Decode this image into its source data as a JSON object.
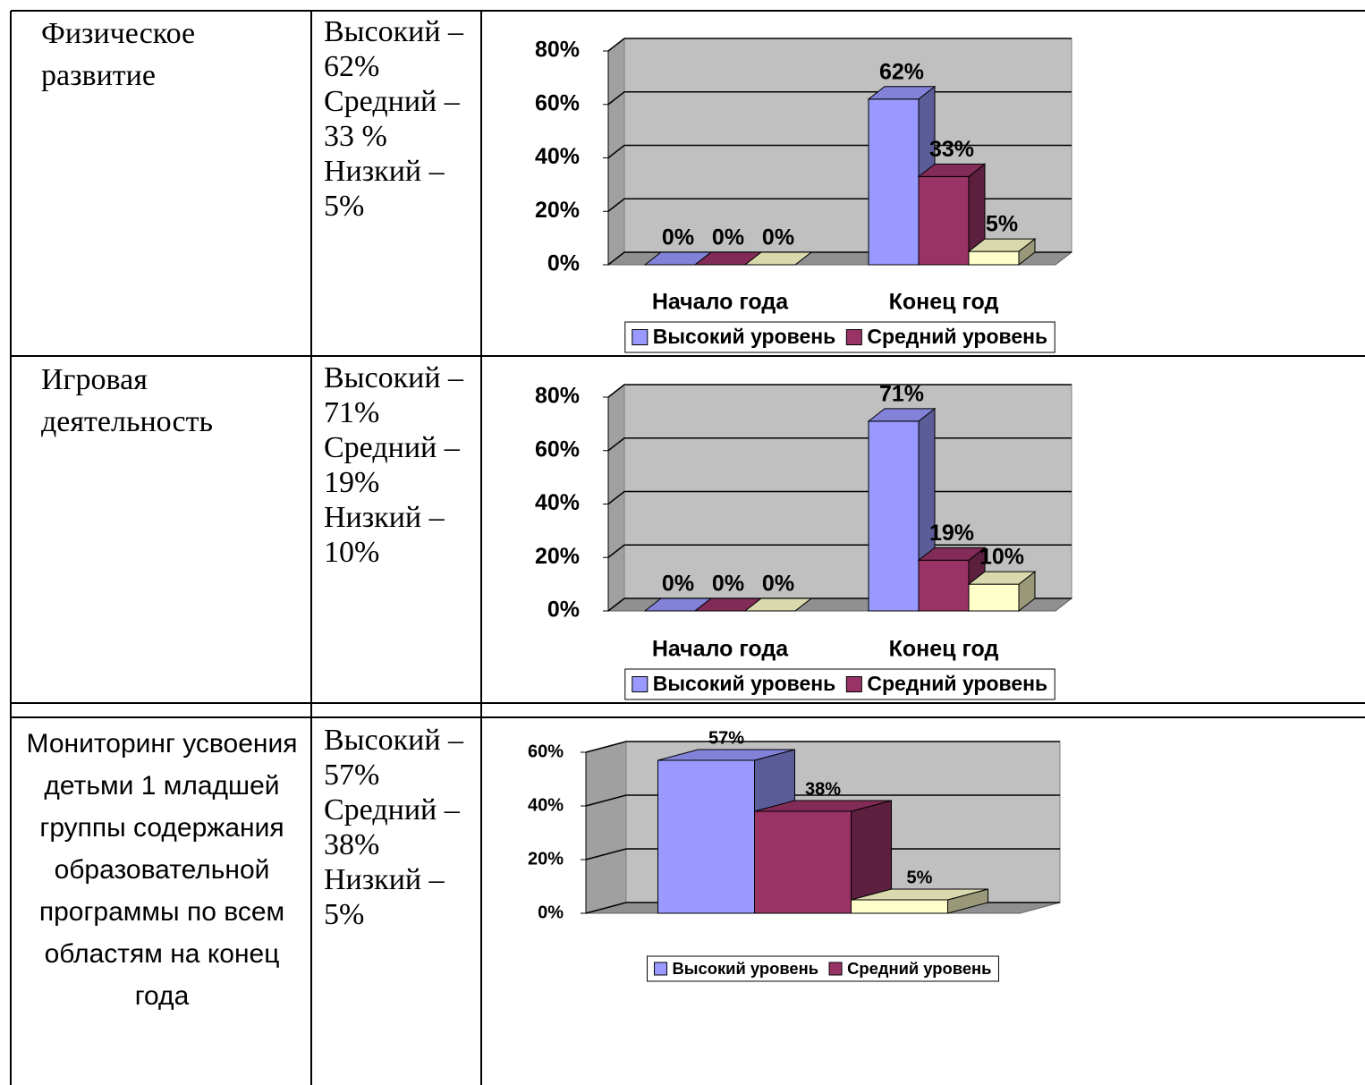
{
  "table": {
    "rows": [
      {
        "area": "Физическое развитие",
        "levels": [
          "Высокий – 62%",
          "Средний – 33 %",
          "Низкий – 5%"
        ]
      },
      {
        "area": "Игровая деятельность",
        "levels": [
          "Высокий – 71%",
          "Средний – 19%",
          "Низкий – 10%"
        ]
      },
      {
        "area": "Мониторинг усвоения детьми 1 младшей  группы содержания образовательной программы по всем областям на конец года",
        "levels": [
          "Высокий – 57%",
          "Средний – 38%",
          "Низкий – 5%"
        ]
      }
    ]
  },
  "chart_data": [
    {
      "type": "bar",
      "categories": [
        "Начало года",
        "Конец год"
      ],
      "series": [
        {
          "name": "Высокий уровень",
          "color": "#9999ff",
          "values": [
            0,
            62
          ],
          "value_labels": [
            "0%",
            "62%"
          ]
        },
        {
          "name": "Средний уровень",
          "color": "#993366",
          "values": [
            0,
            33
          ],
          "value_labels": [
            "0%",
            "33%"
          ]
        },
        {
          "color": "#ffffcc",
          "values": [
            0,
            5
          ],
          "value_labels": [
            "0%",
            "5%"
          ]
        }
      ],
      "ylim": [
        0,
        80
      ],
      "yticks": [
        {
          "value": 0,
          "label": "0%"
        },
        {
          "value": 20,
          "label": "20%"
        },
        {
          "value": 40,
          "label": "40%"
        },
        {
          "value": 60,
          "label": "60%"
        },
        {
          "value": 80,
          "label": "80%"
        }
      ],
      "grid": true,
      "legend": "bottom"
    },
    {
      "type": "bar",
      "categories": [
        "Начало года",
        "Конец год"
      ],
      "series": [
        {
          "name": "Высокий уровень",
          "color": "#9999ff",
          "values": [
            0,
            71
          ],
          "value_labels": [
            "0%",
            "71%"
          ]
        },
        {
          "name": "Средний уровень",
          "color": "#993366",
          "values": [
            0,
            19
          ],
          "value_labels": [
            "0%",
            "19%"
          ]
        },
        {
          "color": "#ffffcc",
          "values": [
            0,
            10
          ],
          "value_labels": [
            "0%",
            "10%"
          ]
        }
      ],
      "ylim": [
        0,
        80
      ],
      "yticks": [
        {
          "value": 0,
          "label": "0%"
        },
        {
          "value": 20,
          "label": "20%"
        },
        {
          "value": 40,
          "label": "40%"
        },
        {
          "value": 60,
          "label": "60%"
        },
        {
          "value": 80,
          "label": "80%"
        }
      ],
      "grid": true,
      "legend": "bottom"
    },
    {
      "type": "bar",
      "categories": [
        null
      ],
      "series": [
        {
          "name": "Высокий уровень",
          "color": "#9999ff",
          "values": [
            57
          ],
          "value_labels": [
            "57%"
          ]
        },
        {
          "name": "Средний уровень",
          "color": "#993366",
          "values": [
            38
          ],
          "value_labels": [
            "38%"
          ]
        },
        {
          "color": "#ffffcc",
          "values": [
            5
          ],
          "value_labels": [
            "5%"
          ]
        }
      ],
      "ylim": [
        0,
        60
      ],
      "yticks": [
        {
          "value": 0,
          "label": "0%"
        },
        {
          "value": 20,
          "label": "20%"
        },
        {
          "value": 40,
          "label": "40%"
        },
        {
          "value": 60,
          "label": "60%"
        }
      ],
      "grid": true,
      "legend": "bottom"
    }
  ]
}
